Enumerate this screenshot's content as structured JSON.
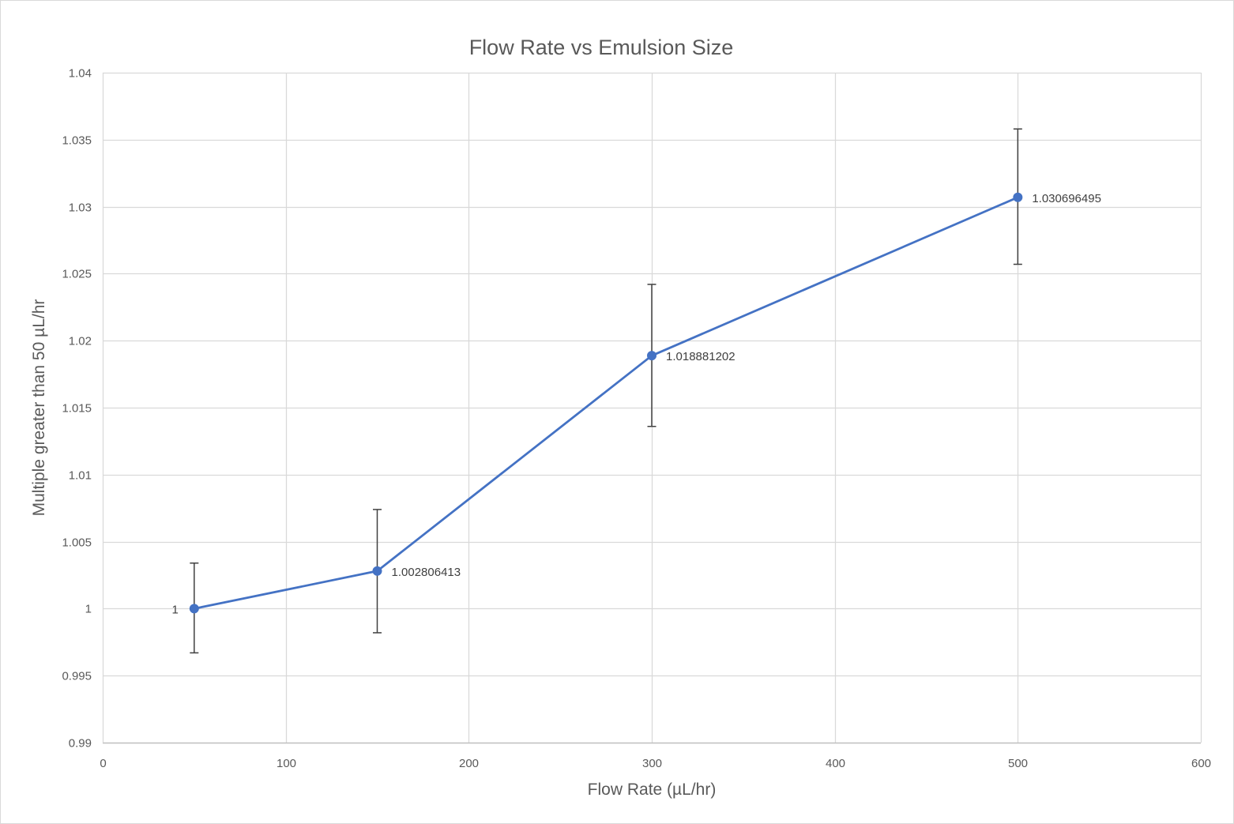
{
  "chart_data": {
    "type": "line",
    "title": "Flow Rate vs Emulsion Size",
    "xlabel": "Flow Rate (µL/hr)",
    "ylabel": "Multiple greater than 50 µL/hr",
    "xlim": [
      0,
      600
    ],
    "ylim": [
      0.99,
      1.04
    ],
    "x_ticks": [
      0,
      100,
      200,
      300,
      400,
      500,
      600
    ],
    "y_ticks": [
      0.99,
      0.995,
      1,
      1.005,
      1.01,
      1.015,
      1.02,
      1.025,
      1.03,
      1.035,
      1.04
    ],
    "x_tick_labels": [
      "0",
      "100",
      "200",
      "300",
      "400",
      "500",
      "600"
    ],
    "y_tick_labels": [
      "0.99",
      "0.995",
      "1",
      "1.005",
      "1.01",
      "1.015",
      "1.02",
      "1.025",
      "1.03",
      "1.035",
      "1.04"
    ],
    "grid": true,
    "legend": "none",
    "series": [
      {
        "color": "#4472c4",
        "x": [
          50,
          150,
          300,
          500
        ],
        "y": [
          1,
          1.002806413,
          1.018881202,
          1.030696495
        ],
        "error_low": [
          0.9967,
          0.9982,
          1.0136,
          1.0257
        ],
        "error_high": [
          1.0034,
          1.0074,
          1.0242,
          1.0358
        ],
        "data_labels": [
          "1",
          "1.002806413",
          "1.018881202",
          "1.030696495"
        ],
        "data_label_positions": [
          "left",
          "right",
          "right",
          "right"
        ]
      }
    ]
  }
}
